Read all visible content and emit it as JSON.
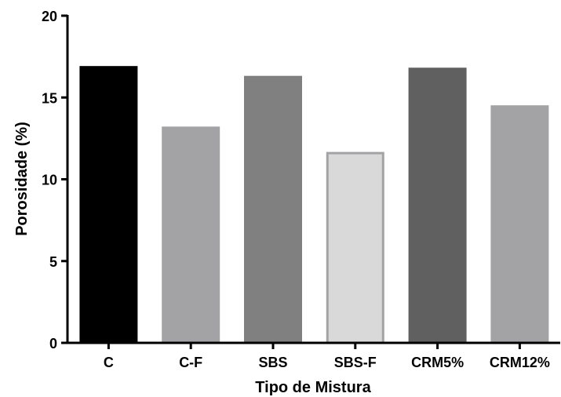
{
  "chart_data": {
    "type": "bar",
    "xlabel": "Tipo de Mistura",
    "ylabel": "Porosidade (%)",
    "ylim": [
      0,
      20
    ],
    "yticks": [
      "0",
      "5",
      "10",
      "15",
      "20"
    ],
    "grid": false,
    "categories": [
      "C",
      "C-F",
      "SBS",
      "SBS-F",
      "CRM5%",
      "CRM12%"
    ],
    "values": [
      16.85,
      13.15,
      16.25,
      11.6,
      16.75,
      14.45
    ],
    "colors": [
      "#000000",
      "#a3a3a6",
      "#808080",
      "#d9d9d9",
      "#606060",
      "#a3a3a6"
    ],
    "outline_colors": [
      "#000000",
      "#a3a3a6",
      "#808080",
      "#a3a3a6",
      "#606060",
      "#a3a3a6"
    ]
  }
}
